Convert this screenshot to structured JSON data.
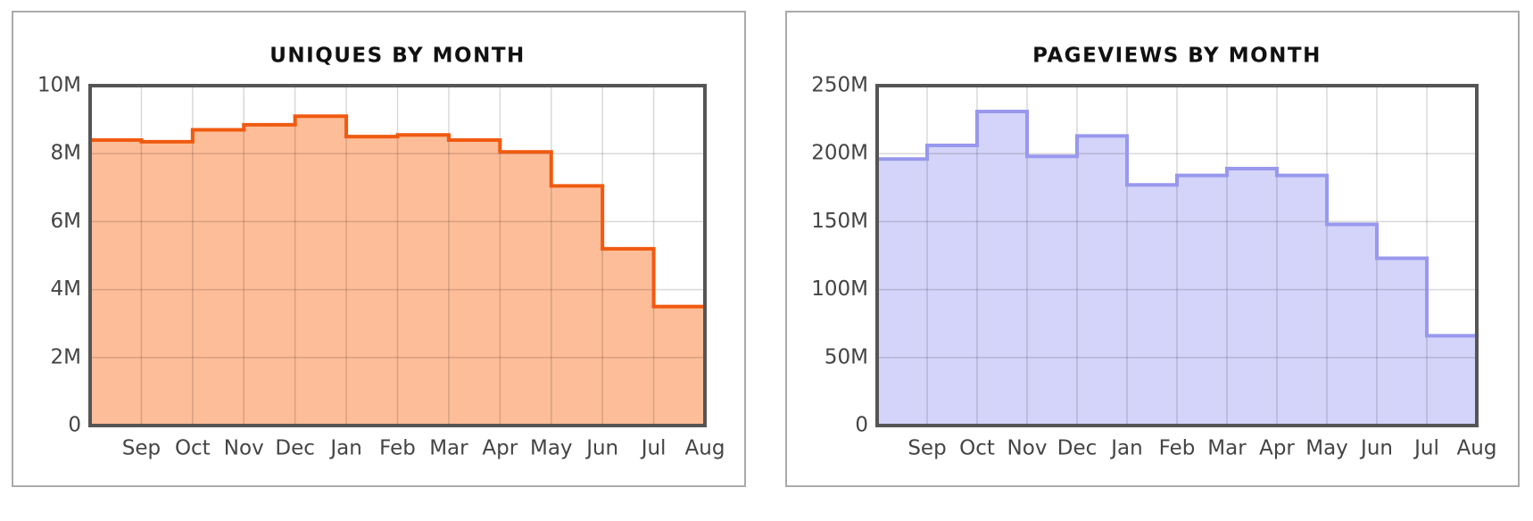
{
  "chart_data": [
    {
      "type": "step",
      "title": "UNIQUES BY MONTH",
      "categories": [
        "Sep",
        "Oct",
        "Nov",
        "Dec",
        "Jan",
        "Feb",
        "Mar",
        "Apr",
        "May",
        "Jun",
        "Jul",
        "Aug"
      ],
      "values": [
        8.4,
        8.35,
        8.7,
        8.85,
        9.1,
        8.5,
        8.55,
        8.4,
        8.05,
        7.05,
        5.2,
        3.5
      ],
      "color": "#f05a10",
      "fill": "#fdbd98",
      "ylim": [
        0,
        10
      ],
      "yticks": [
        0,
        {
          "value": 2,
          "label": "2M"
        },
        {
          "value": 4,
          "label": "4M"
        },
        {
          "value": 6,
          "label": "6M"
        },
        {
          "value": 8,
          "label": "8M"
        },
        {
          "value": 10,
          "label": "10M"
        }
      ],
      "grid": true
    },
    {
      "type": "step",
      "title": "PAGEVIEWS BY MONTH",
      "categories": [
        "Sep",
        "Oct",
        "Nov",
        "Dec",
        "Jan",
        "Feb",
        "Mar",
        "Apr",
        "May",
        "Jun",
        "Jul",
        "Aug"
      ],
      "values": [
        196,
        206,
        231,
        198,
        213,
        177,
        184,
        189,
        184,
        148,
        123,
        66
      ],
      "color": "#9898ee",
      "fill": "#d4d4fa",
      "ylim": [
        0,
        250
      ],
      "yticks": [
        0,
        {
          "value": 50,
          "label": "50M"
        },
        {
          "value": 100,
          "label": "100M"
        },
        {
          "value": 150,
          "label": "150M"
        },
        {
          "value": 200,
          "label": "200M"
        },
        {
          "value": 250,
          "label": "250M"
        }
      ],
      "grid": true
    }
  ]
}
